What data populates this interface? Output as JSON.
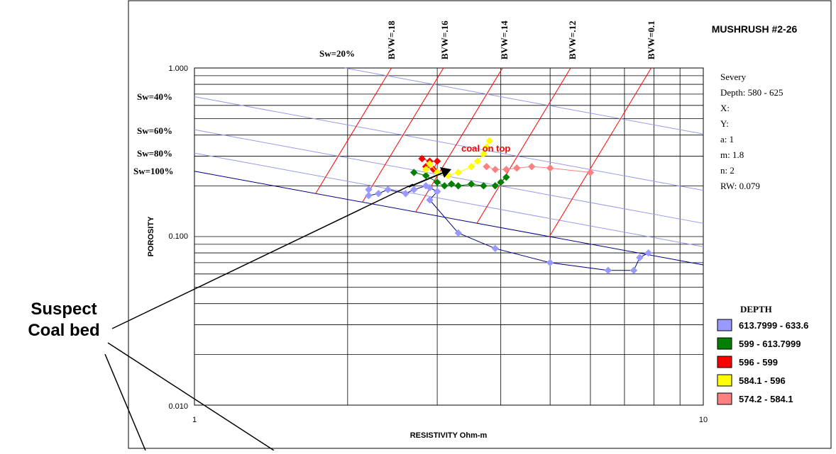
{
  "callout": {
    "line1": "Suspect",
    "line2": "Coal bed"
  },
  "chart_data": {
    "type": "scatter",
    "title": "MUSHRUSH #2-26",
    "xlabel": "RESISTIVITY Ohm-m",
    "ylabel": "POROSITY",
    "xscale": "log",
    "yscale": "log",
    "xlim": [
      1,
      10
    ],
    "ylim": [
      0.01,
      1.0
    ],
    "x_tick_labels": [
      "1",
      "10"
    ],
    "y_tick_labels": [
      "0.010",
      "0.100",
      "1.000"
    ],
    "grid": true,
    "info": [
      "Severy",
      "Depth: 580 - 625",
      "X:",
      "Y:",
      "a: 1",
      "m: 1.8",
      "n: 2",
      "RW: 0.079"
    ],
    "sw_labels": [
      "Sw=20%",
      "Sw=40%",
      "Sw=60%",
      "Sw=80%",
      "Sw=100%"
    ],
    "bvw_labels": [
      "BVW=.18",
      "BVW=.16",
      "BVW=.14",
      "BVW=.12",
      "BVW=0.1"
    ],
    "annotation": "coal on top",
    "legend_title": "DEPTH",
    "legend_position": "bottom-right",
    "colors": {
      "sw_lines": "#9999ee",
      "sw_100_line": "#000080",
      "bvw_lines": "#ff0000",
      "annotation": "#ff0000"
    },
    "series": [
      {
        "name": "613.7999 - 633.6",
        "color": "#9999ff",
        "points": [
          [
            2.2,
            0.19
          ],
          [
            2.2,
            0.175
          ],
          [
            2.3,
            0.18
          ],
          [
            2.4,
            0.19
          ],
          [
            2.6,
            0.18
          ],
          [
            2.7,
            0.19
          ],
          [
            2.85,
            0.2
          ],
          [
            2.9,
            0.195
          ],
          [
            3.0,
            0.185
          ],
          [
            2.9,
            0.165
          ],
          [
            3.3,
            0.105
          ],
          [
            3.9,
            0.085
          ],
          [
            5.0,
            0.07
          ],
          [
            6.5,
            0.063
          ],
          [
            7.3,
            0.063
          ],
          [
            7.5,
            0.075
          ],
          [
            7.8,
            0.08
          ]
        ]
      },
      {
        "name": "599 - 613.7999",
        "color": "#008000",
        "points": [
          [
            2.7,
            0.24
          ],
          [
            2.85,
            0.23
          ],
          [
            3.0,
            0.21
          ],
          [
            3.1,
            0.2
          ],
          [
            3.2,
            0.205
          ],
          [
            3.3,
            0.2
          ],
          [
            3.5,
            0.205
          ],
          [
            3.7,
            0.2
          ],
          [
            3.9,
            0.2
          ],
          [
            4.0,
            0.21
          ],
          [
            4.1,
            0.225
          ]
        ]
      },
      {
        "name": "596 - 599",
        "color": "#ff0000",
        "points": [
          [
            2.8,
            0.29
          ],
          [
            2.9,
            0.28
          ],
          [
            3.0,
            0.28
          ],
          [
            2.95,
            0.25
          ],
          [
            2.85,
            0.26
          ]
        ]
      },
      {
        "name": "584.1 - 596",
        "color": "#ffff00",
        "points": [
          [
            2.85,
            0.25
          ],
          [
            2.9,
            0.27
          ],
          [
            3.0,
            0.24
          ],
          [
            3.15,
            0.23
          ],
          [
            3.3,
            0.24
          ],
          [
            3.5,
            0.26
          ],
          [
            3.6,
            0.28
          ],
          [
            3.7,
            0.31
          ],
          [
            3.75,
            0.34
          ],
          [
            3.8,
            0.37
          ]
        ]
      },
      {
        "name": "574.2 - 584.1",
        "color": "#ff8080",
        "points": [
          [
            3.75,
            0.26
          ],
          [
            3.9,
            0.25
          ],
          [
            4.1,
            0.25
          ],
          [
            4.3,
            0.255
          ],
          [
            4.6,
            0.26
          ],
          [
            5.0,
            0.255
          ],
          [
            6.0,
            0.24
          ]
        ]
      }
    ]
  }
}
